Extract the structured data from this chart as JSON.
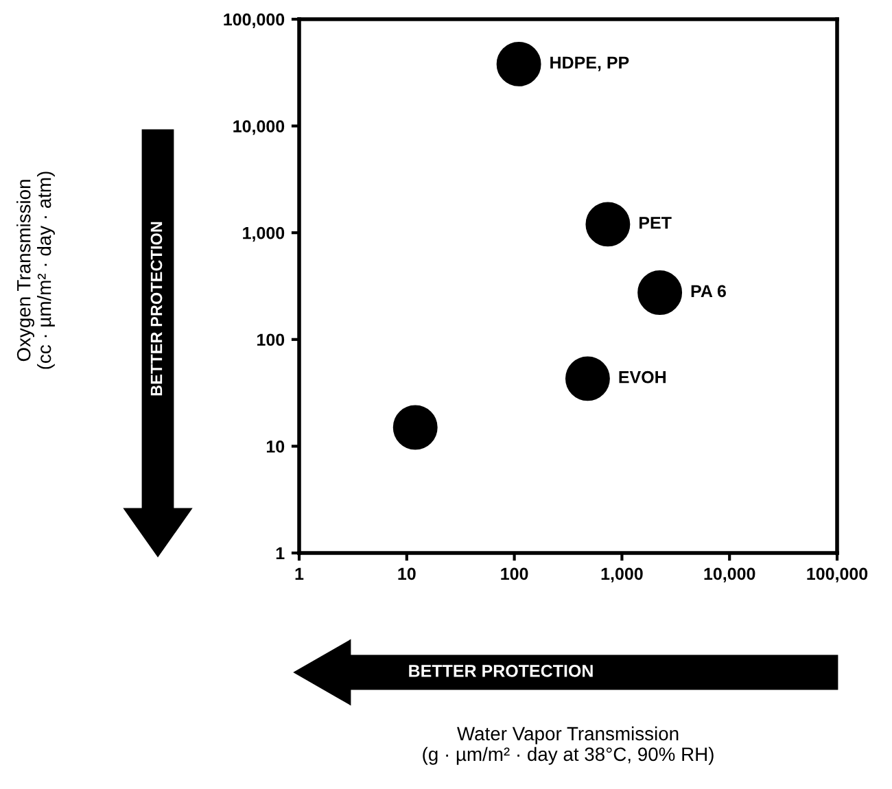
{
  "chart_data": {
    "type": "scatter",
    "x": [
      110,
      740,
      2250,
      480,
      12
    ],
    "series": [
      {
        "color": "#000000",
        "values": [
          38000,
          1200,
          275,
          43,
          15
        ]
      }
    ],
    "log": "xy",
    "marker": "circle",
    "grid": false,
    "legend": false,
    "xlim": [
      1,
      100000
    ],
    "ylim": [
      1,
      100000
    ],
    "xticks": [
      1,
      10,
      100,
      {
        "value": 1000,
        "label": "1,000"
      },
      {
        "value": 10000,
        "label": "10,000"
      },
      {
        "value": 100000,
        "label": "100,000"
      }
    ],
    "yticks": [
      1,
      10,
      100,
      {
        "value": 1000,
        "label": "1,000"
      },
      {
        "value": 10000,
        "label": "10,000"
      },
      {
        "value": 100000,
        "label": "100,000"
      }
    ],
    "annotations": [
      {
        "text": "HDPE, PP",
        "x": 110,
        "y": 38000
      },
      {
        "text": "PET",
        "x": 740,
        "y": 1200
      },
      {
        "text": "PA 6",
        "x": 2250,
        "y": 275
      },
      {
        "text": "EVOH",
        "x": 480,
        "y": 43
      },
      "BETTER PROTECTION",
      "BETTER PROTECTION",
      "Water Vapor Transmission\n(g · µm/m² · day at 38°C, 90% RH)",
      "Oxygen Transmission\n(cc · µm/m² · day · atm)"
    ]
  }
}
